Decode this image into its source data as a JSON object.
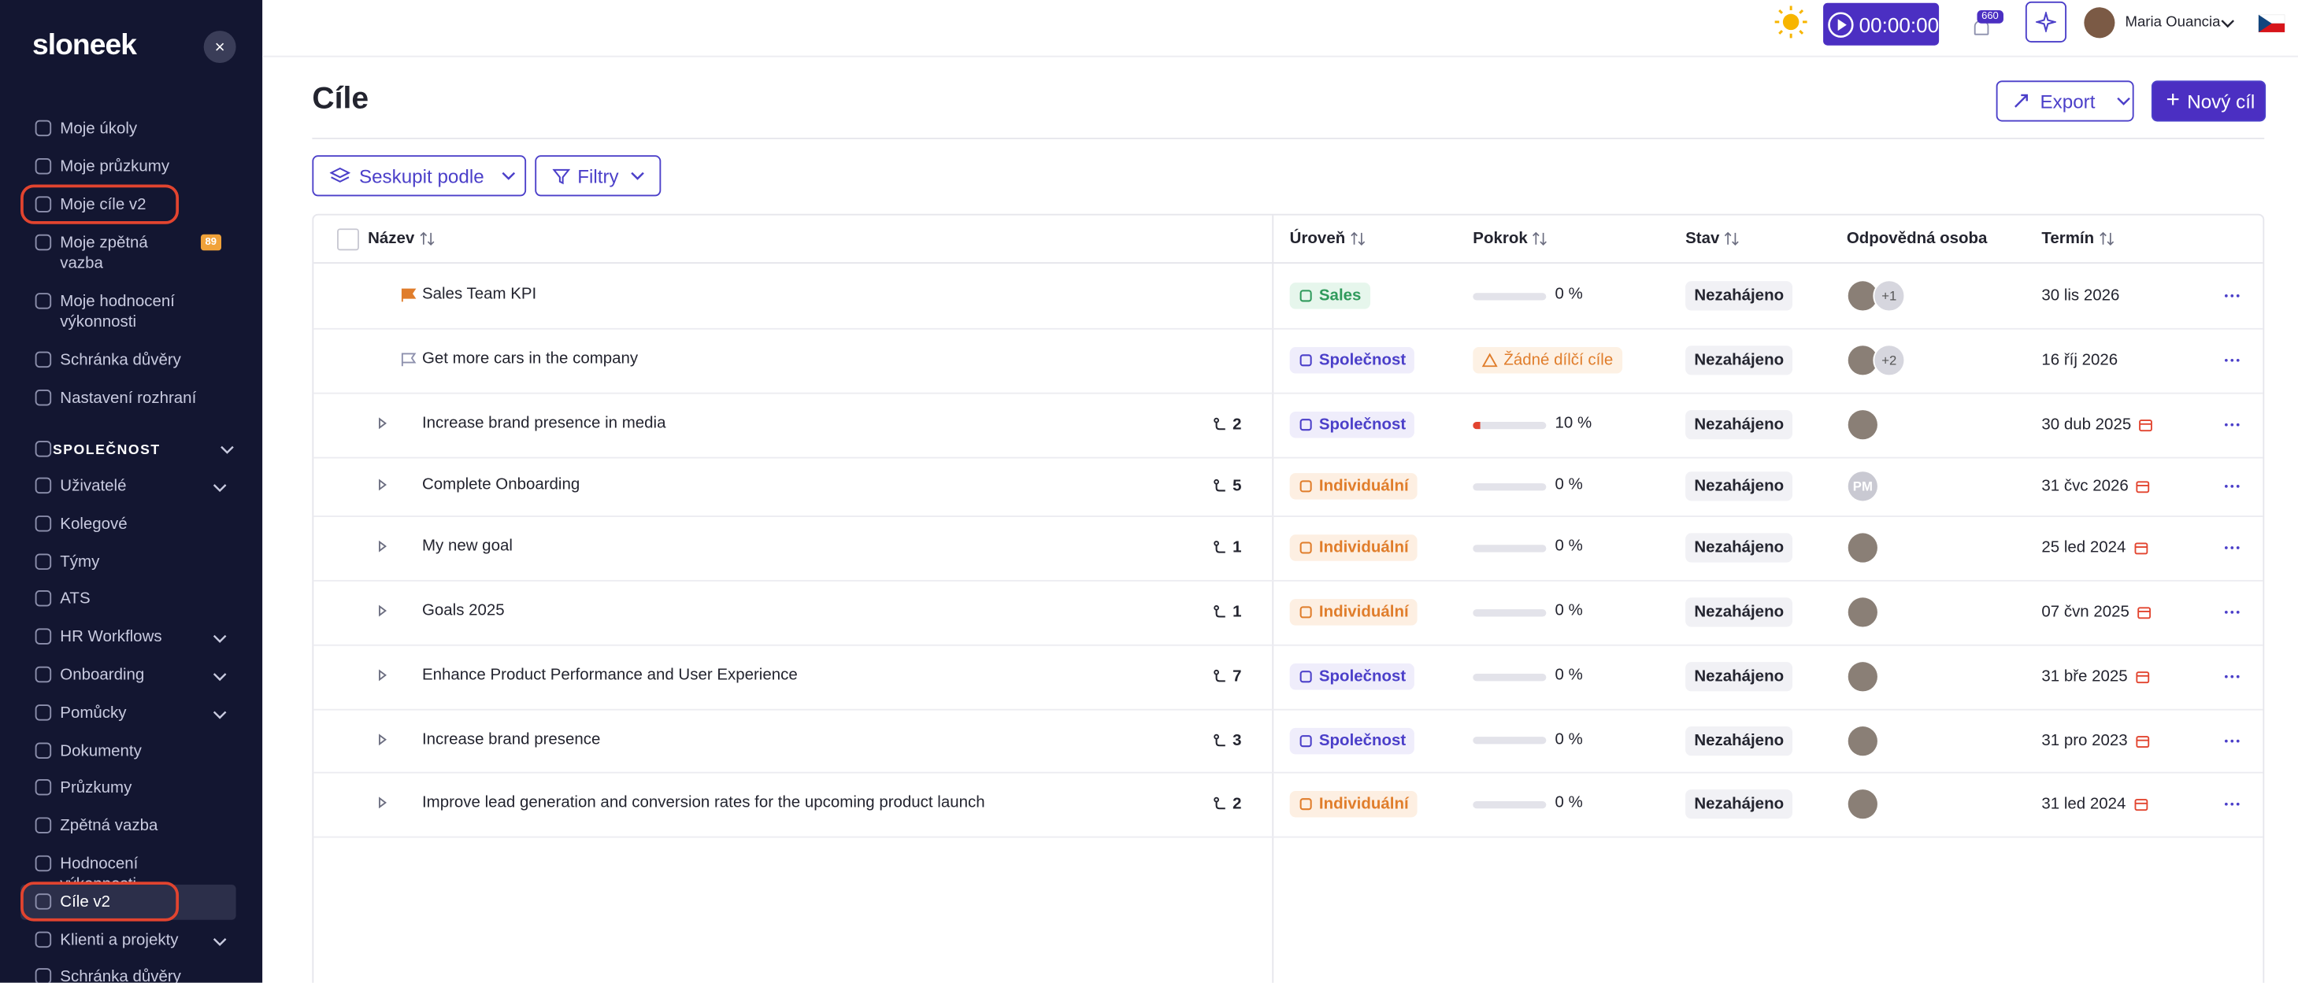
{
  "sidebar": {
    "logo": "sloneek",
    "items": [
      {
        "label": "Moje úkoly"
      },
      {
        "label": "Moje průzkumy"
      },
      {
        "label": "Moje cíle v2",
        "highlighted": true
      },
      {
        "label": "Moje zpětná vazba",
        "badge": "89"
      },
      {
        "label": "Moje hodnocení výkonnosti"
      },
      {
        "label": "Schránka důvěry"
      },
      {
        "label": "Nastavení rozhraní"
      }
    ],
    "section": "SPOLEČNOST",
    "company_items": [
      {
        "label": "Uživatelé",
        "expandable": true
      },
      {
        "label": "Kolegové"
      },
      {
        "label": "Týmy"
      },
      {
        "label": "ATS"
      },
      {
        "label": "HR Workflows",
        "expandable": true
      },
      {
        "label": "Onboarding",
        "expandable": true
      },
      {
        "label": "Pomůcky",
        "expandable": true
      },
      {
        "label": "Dokumenty"
      },
      {
        "label": "Průzkumy"
      },
      {
        "label": "Zpětná vazba"
      },
      {
        "label": "Hodnocení výkonnosti"
      },
      {
        "label": "Cíle v2",
        "active": true,
        "highlighted": true
      },
      {
        "label": "Klienti a projekty",
        "expandable": true
      },
      {
        "label": "Schránka důvěry"
      }
    ]
  },
  "header": {
    "timer": "00:00:00",
    "notifications": "660",
    "user": "Maria Ouancia"
  },
  "page": {
    "title": "Cíle",
    "export": "Export",
    "new_goal": "Nový cíl",
    "group_by": "Seskupit podle",
    "filters": "Filtry"
  },
  "table": {
    "columns": [
      "Název",
      "Úroveň",
      "Pokrok",
      "Stav",
      "Odpovědná osoba",
      "Termín"
    ],
    "rows": [
      {
        "name": "Sales Team KPI",
        "marker": "flag-filled",
        "subgoals": null,
        "level": "Sales",
        "level_kind": "sales",
        "progress_value": 0,
        "progress_label": "0 %",
        "warning": null,
        "status": "Nezahájeno",
        "avatar_extra": "+1",
        "avatar_initials": null,
        "deadline": "30 lis 2026",
        "overdue": false
      },
      {
        "name": "Get more cars in the company",
        "marker": "flag-outline",
        "subgoals": null,
        "level": "Společnost",
        "level_kind": "company",
        "progress_value": null,
        "progress_label": null,
        "warning": "Žádné dílčí cíle",
        "status": "Nezahájeno",
        "avatar_extra": "+2",
        "avatar_initials": null,
        "deadline": "16 říj 2026",
        "overdue": false
      },
      {
        "name": "Increase brand presence in media",
        "marker": "expand",
        "subgoals": "2",
        "level": "Společnost",
        "level_kind": "company",
        "progress_value": 10,
        "progress_label": "10 %",
        "warning": null,
        "status": "Nezahájeno",
        "avatar_extra": null,
        "avatar_initials": null,
        "deadline": "30 dub 2025",
        "overdue": true
      },
      {
        "name": "Complete Onboarding",
        "marker": "expand",
        "subgoals": "5",
        "level": "Individuální",
        "level_kind": "individual",
        "progress_value": 0,
        "progress_label": "0 %",
        "warning": null,
        "status": "Nezahájeno",
        "avatar_extra": null,
        "avatar_initials": "PM",
        "deadline": "31 čvc 2026",
        "overdue": true
      },
      {
        "name": "My new goal",
        "marker": "expand",
        "subgoals": "1",
        "level": "Individuální",
        "level_kind": "individual",
        "progress_value": 0,
        "progress_label": "0 %",
        "warning": null,
        "status": "Nezahájeno",
        "avatar_extra": null,
        "avatar_initials": null,
        "deadline": "25 led 2024",
        "overdue": true
      },
      {
        "name": "Goals 2025",
        "marker": "expand",
        "subgoals": "1",
        "level": "Individuální",
        "level_kind": "individual",
        "progress_value": 0,
        "progress_label": "0 %",
        "warning": null,
        "status": "Nezahájeno",
        "avatar_extra": null,
        "avatar_initials": null,
        "deadline": "07 čvn 2025",
        "overdue": true
      },
      {
        "name": "Enhance Product Performance and User Experience",
        "marker": "expand",
        "subgoals": "7",
        "level": "Společnost",
        "level_kind": "company",
        "progress_value": 0,
        "progress_label": "0 %",
        "warning": null,
        "status": "Nezahájeno",
        "avatar_extra": null,
        "avatar_initials": null,
        "deadline": "31 bře 2025",
        "overdue": true
      },
      {
        "name": "Increase brand presence",
        "marker": "expand",
        "subgoals": "3",
        "level": "Společnost",
        "level_kind": "company",
        "progress_value": 0,
        "progress_label": "0 %",
        "warning": null,
        "status": "Nezahájeno",
        "avatar_extra": null,
        "avatar_initials": null,
        "deadline": "31 pro 2023",
        "overdue": true
      },
      {
        "name": "Improve lead generation and conversion rates for the upcoming product launch",
        "marker": "expand",
        "subgoals": "2",
        "level": "Individuální",
        "level_kind": "individual",
        "progress_value": 0,
        "progress_label": "0 %",
        "warning": null,
        "status": "Nezahájeno",
        "avatar_extra": null,
        "avatar_initials": null,
        "deadline": "31 led 2024",
        "overdue": true
      }
    ]
  }
}
